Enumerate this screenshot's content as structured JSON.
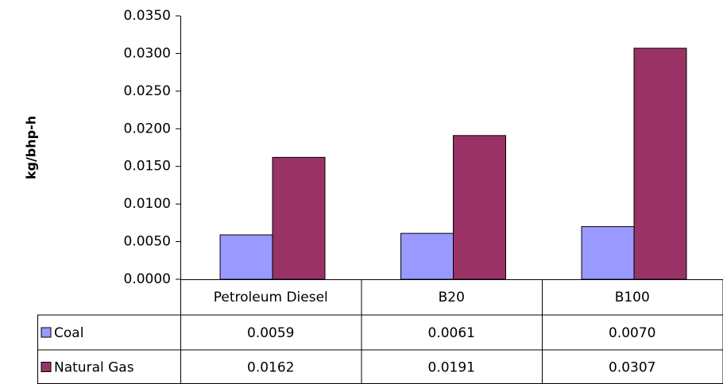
{
  "chart_data": {
    "type": "bar",
    "y_label": "kg/bhp-h",
    "categories": [
      "Petroleum Diesel",
      "B20",
      "B100"
    ],
    "series": [
      {
        "name": "Coal",
        "color": "#9999ff",
        "values": [
          0.0059,
          0.0061,
          0.007
        ],
        "value_labels": [
          "0.0059",
          "0.0061",
          "0.0070"
        ]
      },
      {
        "name": "Natural Gas",
        "color": "#993366",
        "values": [
          0.0162,
          0.0191,
          0.0307
        ],
        "value_labels": [
          "0.0162",
          "0.0191",
          "0.0307"
        ]
      }
    ],
    "ylim": [
      0,
      0.035
    ],
    "yticks": [
      {
        "value": 0,
        "label": "0.0000"
      },
      {
        "value": 0.005,
        "label": "0.0050"
      },
      {
        "value": 0.01,
        "label": "0.0100"
      },
      {
        "value": 0.015,
        "label": "0.0150"
      },
      {
        "value": 0.02,
        "label": "0.0200"
      },
      {
        "value": 0.025,
        "label": "0.0250"
      },
      {
        "value": 0.03,
        "label": "0.0300"
      },
      {
        "value": 0.035,
        "label": "0.0350"
      }
    ]
  }
}
